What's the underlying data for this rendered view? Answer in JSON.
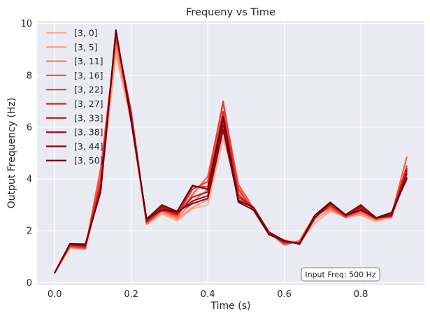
{
  "chart_data": {
    "type": "line",
    "title": "Frequeny vs Time",
    "xlabel": "Time (s)",
    "ylabel": "Output Frequency (Hz)",
    "xlim": [
      -0.046,
      0.966
    ],
    "ylim": [
      -0.1,
      10.1
    ],
    "x_ticks": [
      0.0,
      0.2,
      0.4,
      0.6,
      0.8
    ],
    "x_tick_labels": [
      "0.0",
      "0.2",
      "0.4",
      "0.6",
      "0.8"
    ],
    "y_ticks": [
      0,
      2,
      4,
      6,
      8,
      10
    ],
    "y_tick_labels": [
      "0",
      "2",
      "4",
      "6",
      "8",
      "10"
    ],
    "grid": true,
    "legend_position": "top-left",
    "annotation": "Input Freq: 500 Hz",
    "x": [
      0.0,
      0.04,
      0.08,
      0.12,
      0.16,
      0.2,
      0.24,
      0.28,
      0.32,
      0.36,
      0.4,
      0.44,
      0.48,
      0.52,
      0.56,
      0.6,
      0.64,
      0.68,
      0.72,
      0.76,
      0.8,
      0.84,
      0.88,
      0.92
    ],
    "series": [
      {
        "name": "[3, 0]",
        "color": "#fcab8f",
        "values": [
          0.38,
          1.35,
          1.3,
          3.6,
          8.8,
          6.2,
          2.25,
          2.65,
          2.38,
          2.85,
          3.0,
          5.55,
          3.5,
          2.75,
          1.85,
          1.65,
          1.55,
          2.3,
          2.75,
          2.55,
          2.6,
          2.35,
          2.55,
          4.1
        ]
      },
      {
        "name": "[3, 5]",
        "color": "#fc9474",
        "values": [
          0.38,
          1.35,
          1.28,
          3.7,
          9.0,
          6.3,
          2.3,
          2.7,
          2.45,
          2.9,
          3.2,
          5.85,
          3.55,
          2.78,
          1.88,
          1.6,
          1.5,
          2.45,
          2.8,
          2.55,
          2.65,
          2.42,
          2.5,
          4.2
        ]
      },
      {
        "name": "[3, 11]",
        "color": "#fb7c5c",
        "values": [
          0.38,
          1.37,
          1.3,
          4.2,
          9.2,
          6.4,
          2.25,
          2.75,
          2.5,
          3.1,
          3.6,
          6.4,
          3.7,
          2.82,
          1.92,
          1.55,
          1.58,
          2.6,
          2.85,
          2.5,
          2.7,
          2.45,
          2.55,
          4.3
        ]
      },
      {
        "name": "[3, 16]",
        "color": "#f6583e",
        "values": [
          0.38,
          1.4,
          1.32,
          4.4,
          9.4,
          6.5,
          2.28,
          2.8,
          2.55,
          3.4,
          4.1,
          6.9,
          3.8,
          2.85,
          1.95,
          1.45,
          1.62,
          2.6,
          2.9,
          2.52,
          2.75,
          2.42,
          2.6,
          4.85
        ]
      },
      {
        "name": "[3, 22]",
        "color": "#eb362a",
        "values": [
          0.38,
          1.42,
          1.35,
          4.0,
          9.55,
          6.6,
          2.32,
          2.78,
          2.6,
          3.6,
          3.9,
          7.0,
          3.6,
          2.8,
          1.9,
          1.52,
          1.55,
          2.6,
          2.95,
          2.55,
          2.8,
          2.45,
          2.65,
          4.5
        ]
      },
      {
        "name": "[3, 27]",
        "color": "#d52221",
        "values": [
          0.38,
          1.45,
          1.38,
          3.8,
          9.6,
          6.55,
          2.35,
          2.85,
          2.62,
          3.7,
          3.7,
          6.6,
          3.4,
          2.85,
          1.9,
          1.55,
          1.52,
          2.5,
          3.0,
          2.58,
          2.85,
          2.48,
          2.6,
          4.4
        ]
      },
      {
        "name": "[3, 33]",
        "color": "#bc141a",
        "values": [
          0.38,
          1.47,
          1.4,
          3.65,
          9.65,
          6.45,
          2.38,
          2.9,
          2.65,
          3.3,
          3.5,
          6.3,
          3.3,
          2.9,
          1.9,
          1.6,
          1.5,
          2.5,
          3.05,
          2.6,
          2.9,
          2.5,
          2.55,
          4.35
        ]
      },
      {
        "name": "[3, 38]",
        "color": "#a10e15",
        "values": [
          0.38,
          1.48,
          1.42,
          3.55,
          9.7,
          6.35,
          2.42,
          2.95,
          2.7,
          3.15,
          3.35,
          6.1,
          3.2,
          2.88,
          1.92,
          1.62,
          1.48,
          2.5,
          3.05,
          2.62,
          2.95,
          2.5,
          2.6,
          4.2
        ]
      },
      {
        "name": "[3, 44]",
        "color": "#860811",
        "values": [
          0.38,
          1.5,
          1.45,
          3.5,
          9.75,
          6.25,
          2.45,
          3.0,
          2.75,
          3.05,
          3.25,
          5.9,
          3.15,
          2.9,
          1.95,
          1.62,
          1.5,
          2.5,
          3.1,
          2.62,
          3.0,
          2.5,
          2.62,
          4.05
        ]
      },
      {
        "name": "[3, 50]",
        "color": "#67000d",
        "values": [
          0.38,
          1.5,
          1.48,
          3.5,
          9.75,
          6.2,
          2.48,
          2.8,
          2.75,
          3.75,
          3.6,
          6.4,
          3.1,
          2.8,
          1.85,
          1.6,
          1.5,
          2.6,
          3.1,
          2.6,
          2.8,
          2.5,
          2.7,
          4.0
        ]
      }
    ]
  }
}
